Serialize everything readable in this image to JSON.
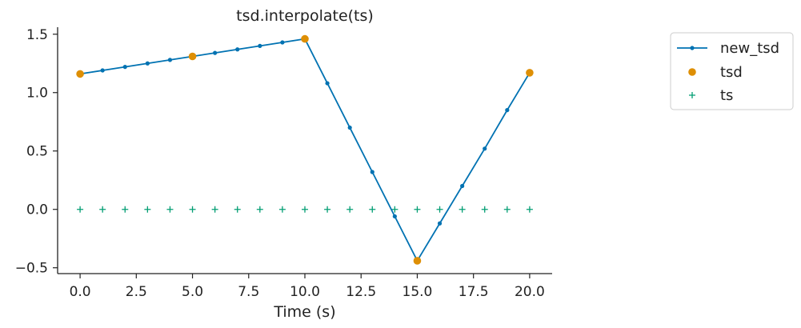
{
  "chart_data": {
    "type": "line",
    "title": "tsd.interpolate(ts)",
    "xlabel": "Time (s)",
    "ylabel": "",
    "xlim": [
      -1.0,
      21.0
    ],
    "ylim": [
      -0.55,
      1.56
    ],
    "xticks": [
      0.0,
      2.5,
      5.0,
      7.5,
      10.0,
      12.5,
      15.0,
      17.5,
      20.0
    ],
    "xtick_labels": [
      "0.0",
      "2.5",
      "5.0",
      "7.5",
      "10.0",
      "12.5",
      "15.0",
      "17.5",
      "20.0"
    ],
    "yticks": [
      -0.5,
      0.0,
      0.5,
      1.0,
      1.5
    ],
    "ytick_labels": [
      "−0.5",
      "0.0",
      "0.5",
      "1.0",
      "1.5"
    ],
    "legend_position": "outside-top-right",
    "series": [
      {
        "name": "new_tsd",
        "style": "line-with-dots",
        "color": "#0072b2",
        "x": [
          0,
          1,
          2,
          3,
          4,
          5,
          6,
          7,
          8,
          9,
          10,
          11,
          12,
          13,
          14,
          15,
          16,
          17,
          18,
          19,
          20
        ],
        "y": [
          1.16,
          1.19,
          1.22,
          1.25,
          1.28,
          1.31,
          1.34,
          1.37,
          1.4,
          1.43,
          1.46,
          1.08,
          0.7,
          0.32,
          -0.06,
          -0.44,
          -0.12,
          0.2,
          0.52,
          0.85,
          1.17
        ]
      },
      {
        "name": "tsd",
        "style": "markers",
        "color": "#de8f05",
        "x": [
          0,
          5,
          10,
          15,
          20
        ],
        "y": [
          1.16,
          1.31,
          1.46,
          -0.44,
          1.17
        ]
      },
      {
        "name": "ts",
        "style": "plus",
        "color": "#029e73",
        "x": [
          0,
          1,
          2,
          3,
          4,
          5,
          6,
          7,
          8,
          9,
          10,
          11,
          12,
          13,
          14,
          15,
          16,
          17,
          18,
          19,
          20
        ],
        "y": [
          0,
          0,
          0,
          0,
          0,
          0,
          0,
          0,
          0,
          0,
          0,
          0,
          0,
          0,
          0,
          0,
          0,
          0,
          0,
          0,
          0
        ]
      }
    ]
  }
}
